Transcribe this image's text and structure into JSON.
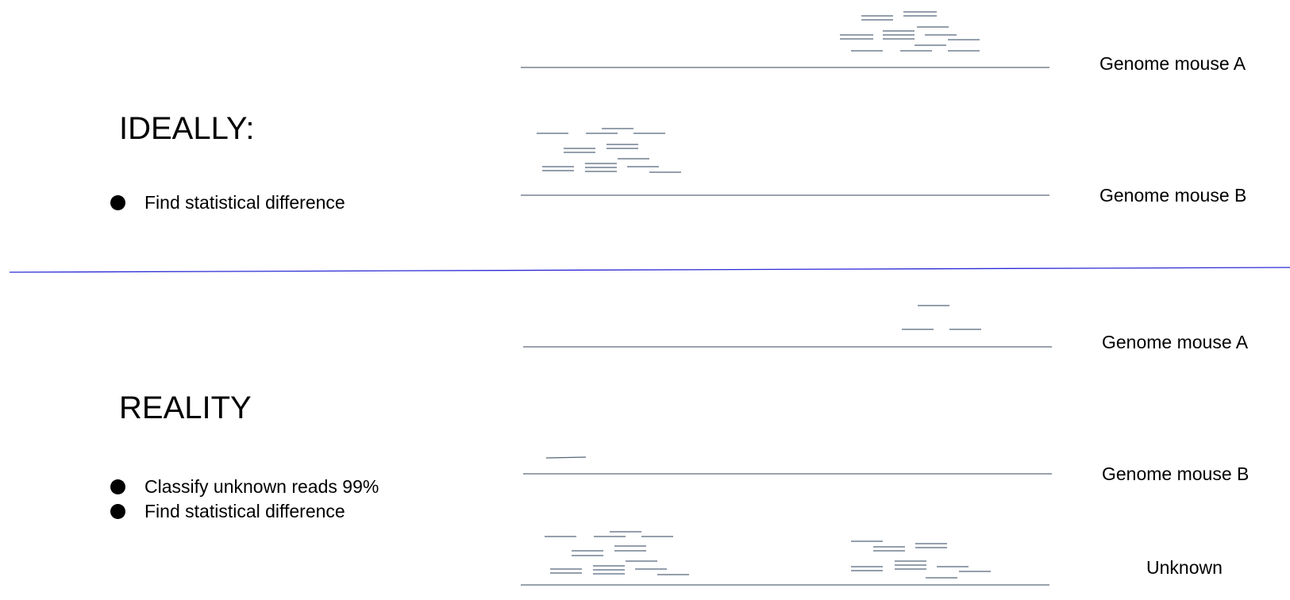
{
  "top_panel": {
    "title": "IDEALLY:",
    "bullets": [
      "Find statistical difference"
    ],
    "genome_a_label": "Genome mouse A",
    "genome_b_label": "Genome mouse B"
  },
  "bottom_panel": {
    "title": "REALITY",
    "bullets": [
      "Classify unknown reads 99%",
      "Find statistical difference"
    ],
    "genome_a_label": "Genome mouse A",
    "genome_b_label": "Genome mouse B",
    "unknown_label": "Unknown"
  },
  "colors": {
    "genome_line": "#5c6b7a",
    "read": "#55667a",
    "divider": "#2b2bd6"
  }
}
